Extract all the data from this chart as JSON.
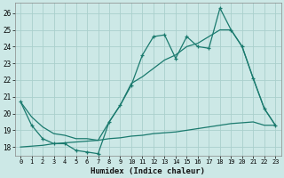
{
  "xlabel": "Humidex (Indice chaleur)",
  "x_values": [
    0,
    1,
    2,
    3,
    4,
    5,
    6,
    7,
    8,
    9,
    10,
    11,
    12,
    13,
    14,
    15,
    16,
    17,
    18,
    19,
    20,
    21,
    22,
    23
  ],
  "line_main_y": [
    20.7,
    19.3,
    18.5,
    18.2,
    18.2,
    17.8,
    17.7,
    17.6,
    19.5,
    20.5,
    21.7,
    23.5,
    24.6,
    24.7,
    23.3,
    24.6,
    24.0,
    23.9,
    26.3,
    25.0,
    24.0,
    22.1,
    20.3,
    19.3
  ],
  "line_base_y": [
    18.0,
    18.05,
    18.1,
    18.2,
    18.25,
    18.3,
    18.35,
    18.4,
    18.5,
    18.55,
    18.65,
    18.7,
    18.8,
    18.85,
    18.9,
    19.0,
    19.1,
    19.2,
    19.3,
    19.4,
    19.45,
    19.5,
    19.3,
    19.3
  ],
  "line_smooth_y": [
    20.7,
    19.8,
    19.2,
    18.8,
    18.7,
    18.5,
    18.5,
    18.4,
    19.5,
    20.5,
    21.8,
    22.2,
    22.7,
    23.2,
    23.5,
    24.0,
    24.2,
    24.6,
    25.0,
    25.0,
    24.0,
    22.1,
    20.3,
    19.3
  ],
  "bg_color": "#cce8e6",
  "line_color": "#1a7a6e",
  "grid_color": "#aad0cc",
  "ylim": [
    17.5,
    26.6
  ],
  "xlim": [
    -0.5,
    23.5
  ],
  "yticks": [
    18,
    19,
    20,
    21,
    22,
    23,
    24,
    25,
    26
  ],
  "xticks": [
    0,
    1,
    2,
    3,
    4,
    5,
    6,
    7,
    8,
    9,
    10,
    11,
    12,
    13,
    14,
    15,
    16,
    17,
    18,
    19,
    20,
    21,
    22,
    23
  ]
}
